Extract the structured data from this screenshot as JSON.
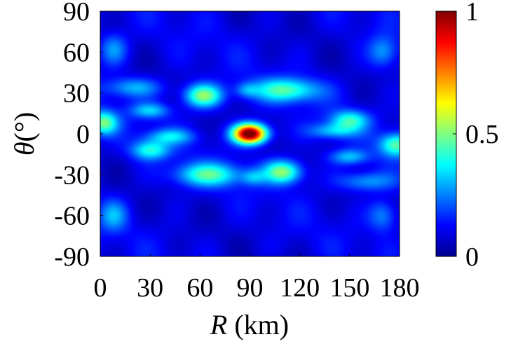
{
  "chart_data": {
    "type": "heatmap",
    "title": "",
    "xlabel_var": "R",
    "xlabel_unit": " (km)",
    "ylabel_var": "θ",
    "ylabel_unit": "(°)",
    "x_ticks": [
      "0",
      "30",
      "60",
      "90",
      "120",
      "150",
      "180"
    ],
    "y_ticks": [
      "90",
      "60",
      "30",
      "0",
      "-30",
      "-60",
      "-90"
    ],
    "xlim": [
      0,
      180
    ],
    "ylim": [
      -90,
      90
    ],
    "colormap": "jet",
    "colorbar": {
      "ticks": [
        "0",
        "0.5",
        "1"
      ],
      "range": [
        0,
        1
      ]
    },
    "background_level": 0.1,
    "peaks": [
      {
        "x": 90,
        "y": 0,
        "value": 1.0,
        "sx": 7,
        "sy": 5
      },
      {
        "x": 62,
        "y": 28,
        "value": 0.42,
        "sx": 8,
        "sy": 6
      },
      {
        "x": 112,
        "y": 32,
        "value": 0.34,
        "sx": 14,
        "sy": 6
      },
      {
        "x": 110,
        "y": -28,
        "value": 0.42,
        "sx": 8,
        "sy": 6
      },
      {
        "x": 65,
        "y": -30,
        "value": 0.33,
        "sx": 14,
        "sy": 6
      },
      {
        "x": 2,
        "y": 8,
        "value": 0.38,
        "sx": 6,
        "sy": 6
      },
      {
        "x": 178,
        "y": -8,
        "value": 0.36,
        "sx": 7,
        "sy": 6
      },
      {
        "x": 30,
        "y": -12,
        "value": 0.3,
        "sx": 8,
        "sy": 5
      },
      {
        "x": 150,
        "y": 10,
        "value": 0.3,
        "sx": 8,
        "sy": 5
      },
      {
        "x": 42,
        "y": -2,
        "value": 0.22,
        "sx": 10,
        "sy": 4
      },
      {
        "x": 140,
        "y": 2,
        "value": 0.22,
        "sx": 10,
        "sy": 4
      },
      {
        "x": 30,
        "y": 17,
        "value": 0.22,
        "sx": 8,
        "sy": 4
      },
      {
        "x": 150,
        "y": -17,
        "value": 0.22,
        "sx": 8,
        "sy": 4
      },
      {
        "x": 20,
        "y": 34,
        "value": 0.2,
        "sx": 12,
        "sy": 5
      },
      {
        "x": 160,
        "y": -35,
        "value": 0.2,
        "sx": 12,
        "sy": 5
      },
      {
        "x": 8,
        "y": 62,
        "value": 0.18,
        "sx": 6,
        "sy": 8
      },
      {
        "x": 170,
        "y": 60,
        "value": 0.18,
        "sx": 6,
        "sy": 8
      },
      {
        "x": 8,
        "y": -60,
        "value": 0.18,
        "sx": 6,
        "sy": 8
      },
      {
        "x": 170,
        "y": -60,
        "value": 0.18,
        "sx": 6,
        "sy": 8
      },
      {
        "x": 92,
        "y": -32,
        "value": 0.15,
        "sx": 5,
        "sy": 4
      },
      {
        "x": 88,
        "y": 32,
        "value": 0.15,
        "sx": 5,
        "sy": 4
      }
    ]
  }
}
